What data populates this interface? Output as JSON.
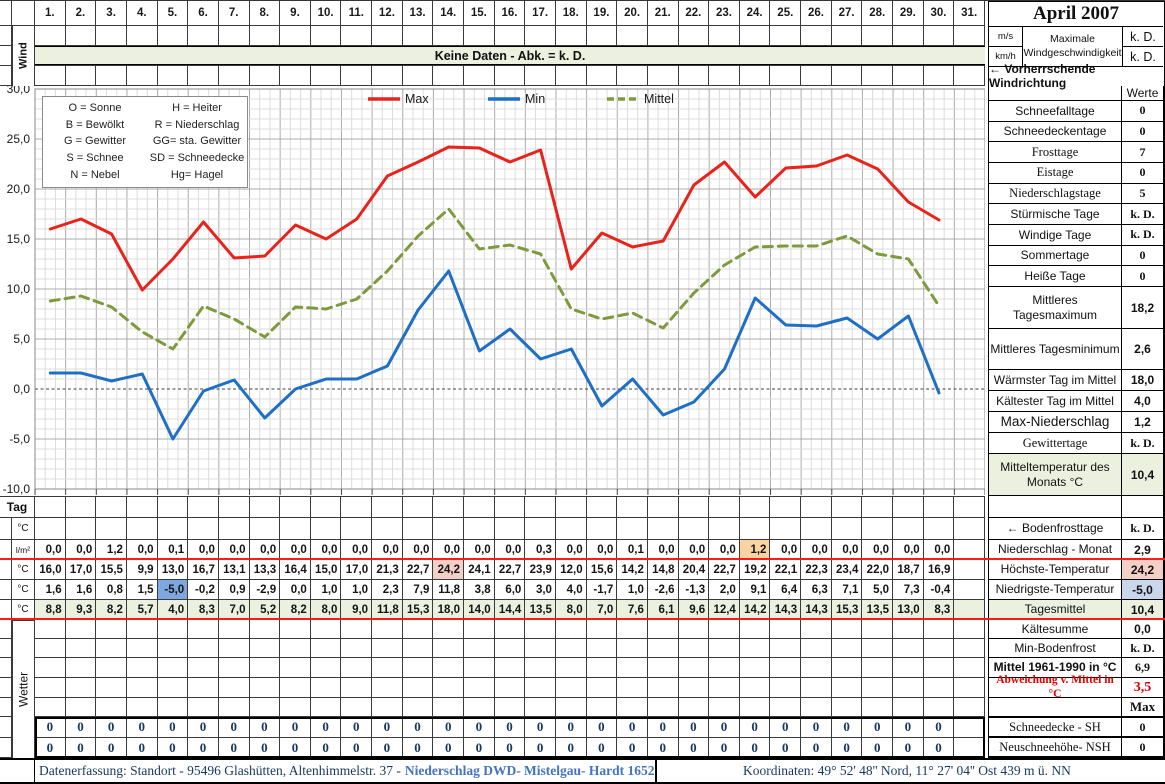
{
  "title": "April 2007",
  "top": {
    "wind_label": "Wind",
    "no_data_banner": "Keine Daten - Abk. = k. D.",
    "unit_ms": "m/s",
    "unit_kmh": "km/h",
    "max_wind_label": "Maximale Windgeschwindigkeit",
    "max_wind_ms": "k. D.",
    "max_wind_kmh": "k. D.",
    "wind_direction_label": "← Vorherrschende Windrichtung"
  },
  "weather_codes": {
    "col1": [
      "O = Sonne",
      "B = Bewölkt",
      "G = Gewitter",
      "S = Schnee",
      "N = Nebel"
    ],
    "col2": [
      "H = Heiter",
      "R = Niederschlag",
      "GG= sta. Gewitter",
      "SD = Schneedecke",
      "Hg= Hagel"
    ]
  },
  "days": [
    "1.",
    "2.",
    "3.",
    "4.",
    "5.",
    "6.",
    "7.",
    "8.",
    "9.",
    "10.",
    "11.",
    "12.",
    "13.",
    "14.",
    "15.",
    "16.",
    "17.",
    "18.",
    "19.",
    "20.",
    "21.",
    "22.",
    "23.",
    "24.",
    "25.",
    "26.",
    "27.",
    "28.",
    "29.",
    "30.",
    "31."
  ],
  "chart_data": {
    "type": "line",
    "x": [
      1,
      2,
      3,
      4,
      5,
      6,
      7,
      8,
      9,
      10,
      11,
      12,
      13,
      14,
      15,
      16,
      17,
      18,
      19,
      20,
      21,
      22,
      23,
      24,
      25,
      26,
      27,
      28,
      29,
      30
    ],
    "series": [
      {
        "name": "Max",
        "color": "#E8231B",
        "dash": null,
        "values": [
          16.0,
          17.0,
          15.5,
          9.9,
          13.0,
          16.7,
          13.1,
          13.3,
          16.4,
          15.0,
          17.0,
          21.3,
          22.7,
          24.2,
          24.1,
          22.7,
          23.9,
          12.0,
          15.6,
          14.2,
          14.8,
          20.4,
          22.7,
          19.2,
          22.1,
          22.3,
          23.4,
          22.0,
          18.7,
          16.9
        ]
      },
      {
        "name": "Min",
        "color": "#1E6FC5",
        "dash": null,
        "values": [
          1.6,
          1.6,
          0.8,
          1.5,
          -5.0,
          -0.2,
          0.9,
          -2.9,
          0.0,
          1.0,
          1.0,
          2.3,
          7.9,
          11.8,
          3.8,
          6.0,
          3.0,
          4.0,
          -1.7,
          1.0,
          -2.6,
          -1.3,
          2.0,
          9.1,
          6.4,
          6.3,
          7.1,
          5.0,
          7.3,
          -0.4
        ]
      },
      {
        "name": "Mittel",
        "color": "#7E9A3C",
        "dash": [
          9,
          6
        ],
        "values": [
          8.8,
          9.3,
          8.2,
          5.7,
          4.0,
          8.3,
          7.0,
          5.2,
          8.2,
          8.0,
          9.0,
          11.8,
          15.3,
          18.0,
          14.0,
          14.4,
          13.5,
          8.0,
          7.0,
          7.6,
          6.1,
          9.6,
          12.4,
          14.2,
          14.3,
          14.3,
          15.3,
          13.5,
          13.0,
          8.3
        ]
      }
    ],
    "ylim": [
      -10,
      30
    ],
    "ytick_step": 5,
    "ytick_labels": [
      "30,0",
      "25,0",
      "20,0",
      "15,0",
      "10,0",
      "5,0",
      "0,0",
      "-5,0",
      "-10,0"
    ],
    "grid": true,
    "legend_position": "top"
  },
  "table": {
    "tag_label": "Tag",
    "wetter_label": "Wetter",
    "row_labels": {
      "temp_header": "°C",
      "precip": "l/m²",
      "max": "°C",
      "min": "°C",
      "mittel": "°C"
    },
    "precip": [
      0.0,
      0.0,
      1.2,
      0.0,
      0.1,
      0.0,
      0.0,
      0.0,
      0.0,
      0.0,
      0.0,
      0.0,
      0.0,
      0.0,
      0.0,
      0.0,
      0.3,
      0.0,
      0.0,
      0.1,
      0.0,
      0.0,
      0.0,
      1.2,
      0.0,
      0.0,
      0.0,
      0.0,
      0.0,
      0.0
    ],
    "snow_depth": [
      0,
      0,
      0,
      0,
      0,
      0,
      0,
      0,
      0,
      0,
      0,
      0,
      0,
      0,
      0,
      0,
      0,
      0,
      0,
      0,
      0,
      0,
      0,
      0,
      0,
      0,
      0,
      0,
      0,
      0
    ],
    "new_snow": [
      0,
      0,
      0,
      0,
      0,
      0,
      0,
      0,
      0,
      0,
      0,
      0,
      0,
      0,
      0,
      0,
      0,
      0,
      0,
      0,
      0,
      0,
      0,
      0,
      0,
      0,
      0,
      0,
      0,
      0
    ]
  },
  "right_panel": {
    "rows": [
      {
        "label": "",
        "value": "Werte"
      },
      {
        "label": "Schneefalltage",
        "value": "0"
      },
      {
        "label": "Schneedeckentage",
        "value": "0"
      },
      {
        "label": "Frosttage",
        "value": "7"
      },
      {
        "label": "Eistage",
        "value": "0"
      },
      {
        "label": "Niederschlagstage",
        "value": "5"
      },
      {
        "label": "Stürmische Tage",
        "value": "k. D."
      },
      {
        "label": "Windige Tage",
        "value": "k. D."
      },
      {
        "label": "Sommertage",
        "value": "0"
      },
      {
        "label": "Heiße Tage",
        "value": "0"
      },
      {
        "label": "Mittleres Tagesmaximum",
        "value": "18,2"
      },
      {
        "label": "Mittleres Tagesminimum",
        "value": "2,6"
      },
      {
        "label": "Wärmster Tag im Mittel",
        "value": "18,0"
      },
      {
        "label": "Kältester Tag im Mittel",
        "value": "4,0"
      },
      {
        "label": "Max-Niederschlag",
        "value": "1,2"
      },
      {
        "label": "Gewittertage",
        "value": "k. D."
      },
      {
        "label": "Mitteltemperatur des Monats °C",
        "value": "10,4"
      },
      {
        "label": "",
        "value": ""
      },
      {
        "label": "← Bodenfrosttage",
        "value": "k. D."
      },
      {
        "label": "Niederschlag - Monat",
        "value": "2,9"
      },
      {
        "label": "Höchste-Temperatur",
        "value": "24,2"
      },
      {
        "label": "Niedrigste-Temperatur",
        "value": "-5,0"
      },
      {
        "label": "Tagesmittel",
        "value": "10,4"
      },
      {
        "label": "Kältesumme",
        "value": "0,0"
      },
      {
        "label": "Min-Bodenfrost",
        "value": "k. D."
      },
      {
        "label": "Mittel 1961-1990 in °C",
        "value": "6,9"
      },
      {
        "label": "Abweichung v. Mittel in °C",
        "value": "3,5"
      },
      {
        "label": "",
        "value": "Max"
      },
      {
        "label": "Schneedecke -  SH",
        "value": "0"
      },
      {
        "label": "Neuschneehöhe- NSH",
        "value": "0"
      }
    ]
  },
  "footer": {
    "left": "Datenerfassung:  Standort -  95496  Glashütten, Altenhimmelstr. 37 -",
    "left_link": "Niederschlag DWD- Mistelgau- Hardt 1652",
    "right": "Koordinaten:  49° 52' 48'' Nord,   11° 27' 04'' Ost   439 m ü. NN"
  },
  "colors": {
    "accent_green": "#EBF1DE",
    "highlight_pink": "#F2CFC7",
    "highlight_orange": "#FBD3A2",
    "highlight_blue": "#7EA6E0",
    "highlight_lightblue": "#C9D7EC",
    "separator_red": "#FF1A1A",
    "link_blue": "#4472C4"
  }
}
